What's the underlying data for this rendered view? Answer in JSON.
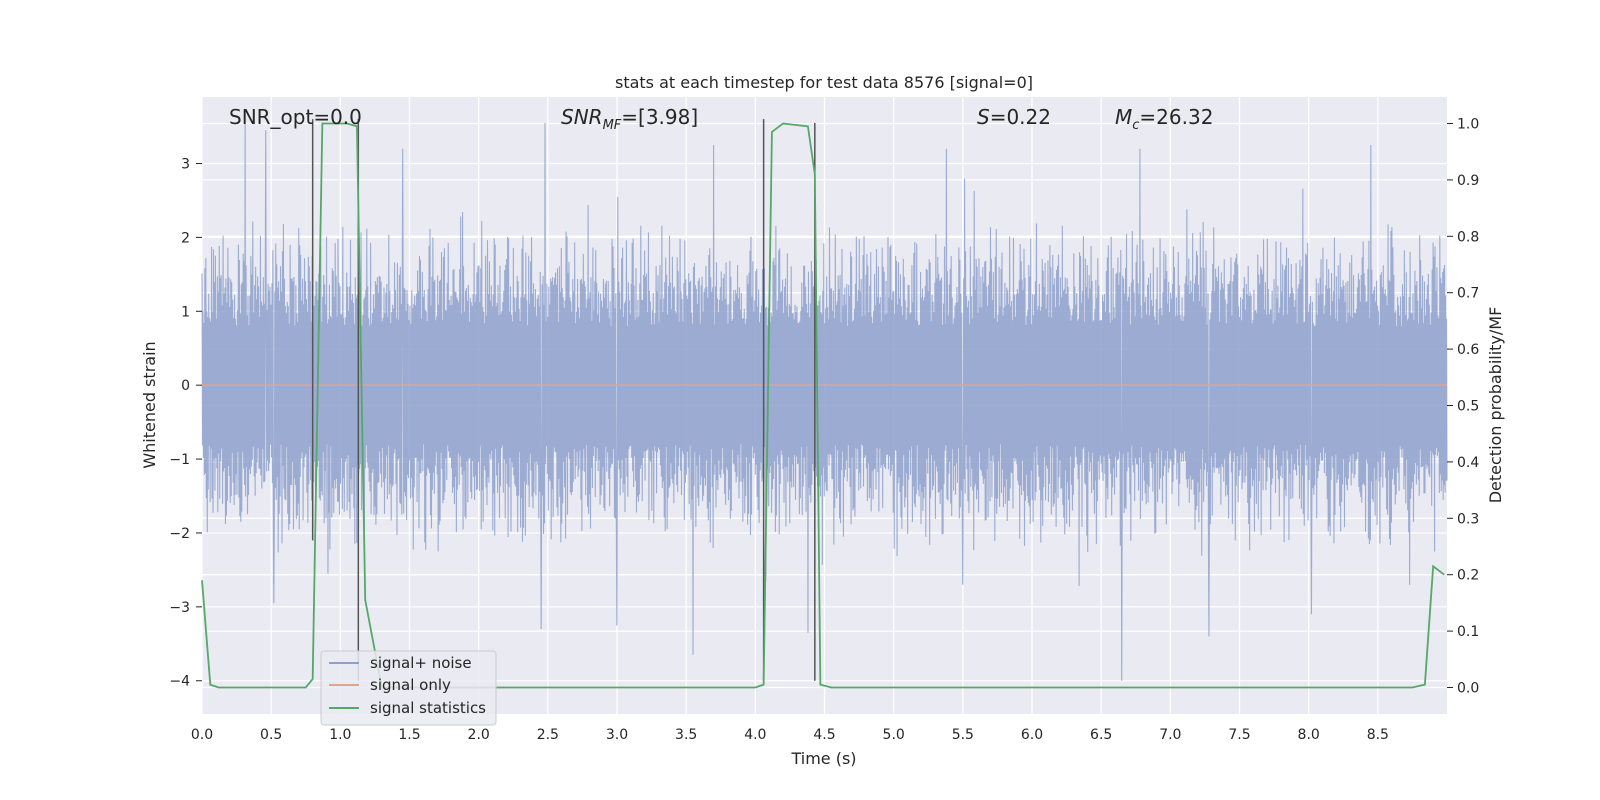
{
  "chart_data": {
    "type": "line",
    "title": "stats at each timestep for test data 8576 [signal=0]",
    "xlabel": "Time (s)",
    "ylabel": "Whitened strain",
    "y2label": "Detection probability/MF",
    "xlim": [
      0.0,
      9.0
    ],
    "ylim": [
      -4.45,
      3.9
    ],
    "y2lim": [
      -0.047,
      1.047
    ],
    "xticks": [
      "0.0",
      "0.5",
      "1.0",
      "1.5",
      "2.0",
      "2.5",
      "3.0",
      "3.5",
      "4.0",
      "4.5",
      "5.0",
      "5.5",
      "6.0",
      "6.5",
      "7.0",
      "7.5",
      "8.0",
      "8.5"
    ],
    "xtick_values": [
      0.0,
      0.5,
      1.0,
      1.5,
      2.0,
      2.5,
      3.0,
      3.5,
      4.0,
      4.5,
      5.0,
      5.5,
      6.0,
      6.5,
      7.0,
      7.5,
      8.0,
      8.5
    ],
    "yticks": [
      "3",
      "2",
      "1",
      "0",
      "−1",
      "−2",
      "−3",
      "−4"
    ],
    "ytick_values": [
      3,
      2,
      1,
      0,
      -1,
      -2,
      -3,
      -4
    ],
    "y2ticks": [
      "1.0",
      "0.9",
      "0.8",
      "0.7",
      "0.6",
      "0.5",
      "0.4",
      "0.3",
      "0.2",
      "0.1",
      "0.0"
    ],
    "y2tick_values": [
      1.0,
      0.9,
      0.8,
      0.7,
      0.6,
      0.5,
      0.4,
      0.3,
      0.2,
      0.1,
      0.0
    ],
    "grid": true,
    "legend_position": "lower-left",
    "annotations": {
      "snr_opt": "SNR_opt=0.0",
      "snr_mf_main": "SNR",
      "snr_mf_sub": "MF",
      "snr_mf_rest": "=[3.98]",
      "s_main": "S",
      "s_rest": "=0.22",
      "mc_main": "M",
      "mc_sub": "c",
      "mc_rest": "=26.32"
    },
    "noise_series": {
      "name": "signal+ noise",
      "color": "#8da0cb",
      "duration": 9.0,
      "typical_range": [
        -2.3,
        2.3
      ],
      "extremes": [
        {
          "x": 0.31,
          "y": 3.55
        },
        {
          "x": 0.46,
          "y": 3.45
        },
        {
          "x": 0.52,
          "y": -2.95
        },
        {
          "x": 0.91,
          "y": -2.55
        },
        {
          "x": 1.45,
          "y": 3.2
        },
        {
          "x": 2.45,
          "y": -3.3
        },
        {
          "x": 2.48,
          "y": 3.55
        },
        {
          "x": 3.0,
          "y": -3.25
        },
        {
          "x": 3.55,
          "y": -3.65
        },
        {
          "x": 3.7,
          "y": 3.25
        },
        {
          "x": 4.38,
          "y": -3.35
        },
        {
          "x": 6.65,
          "y": -4.0
        },
        {
          "x": 6.78,
          "y": -3.0
        },
        {
          "x": 7.28,
          "y": -3.4
        },
        {
          "x": 8.02,
          "y": -3.1
        },
        {
          "x": 8.45,
          "y": 3.25
        },
        {
          "x": 8.73,
          "y": -2.7
        },
        {
          "x": 6.78,
          "y": 3.2
        },
        {
          "x": 5.5,
          "y": -2.7
        },
        {
          "x": 5.38,
          "y": 3.2
        }
      ]
    },
    "signal_series": {
      "name": "signal only",
      "color": "#e1a48e",
      "x": [
        0.0,
        9.0
      ],
      "y": [
        0.0,
        0.0
      ]
    },
    "stat_series": {
      "name": "signal statistics",
      "color": "#55a868",
      "x": [
        0.0,
        0.06,
        0.12,
        0.25,
        0.5,
        0.75,
        0.8,
        0.87,
        0.95,
        1.05,
        1.12,
        1.18,
        1.3,
        2.0,
        3.0,
        4.0,
        4.06,
        4.12,
        4.2,
        4.38,
        4.43,
        4.47,
        4.55,
        5.0,
        6.0,
        7.0,
        8.0,
        8.75,
        8.84,
        8.9,
        8.98
      ],
      "y": [
        0.19,
        0.005,
        0.0,
        0.0,
        0.0,
        0.0,
        0.015,
        1.0,
        1.0,
        1.0,
        0.995,
        0.155,
        0.0,
        0.0,
        0.0,
        0.0,
        0.005,
        0.985,
        1.0,
        0.995,
        0.91,
        0.005,
        0.0,
        0.0,
        0.0,
        0.0,
        0.0,
        0.0,
        0.005,
        0.215,
        0.2
      ]
    },
    "vlines": [
      {
        "x": 0.8,
        "y_from": -2.1,
        "y_to": 3.6
      },
      {
        "x": 1.13,
        "y_from": -4.0,
        "y_to": 3.6
      },
      {
        "x": 4.06,
        "y_from": -4.0,
        "y_to": 3.6
      },
      {
        "x": 4.43,
        "y_from": -4.0,
        "y_to": 3.55
      }
    ]
  }
}
